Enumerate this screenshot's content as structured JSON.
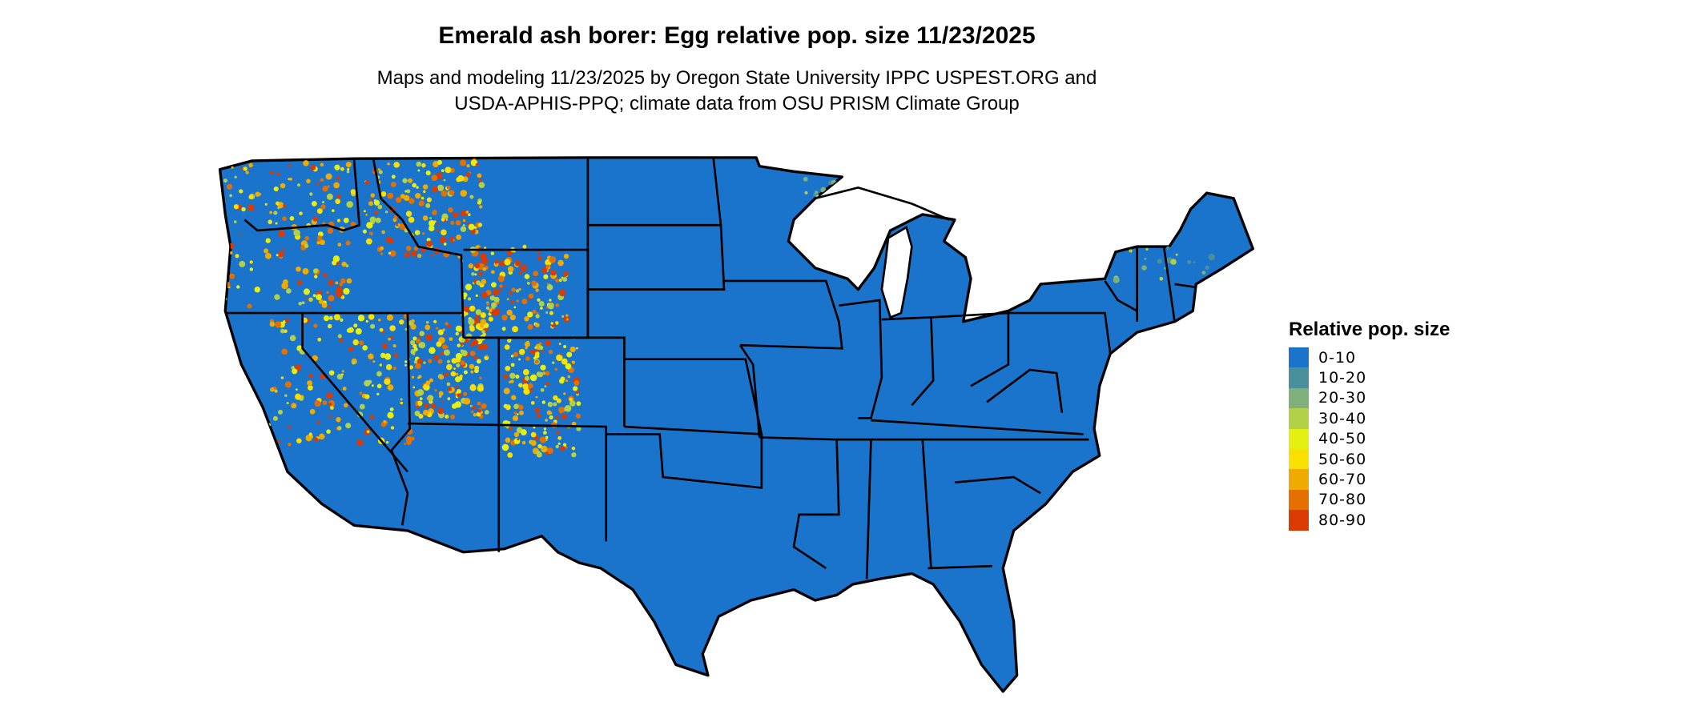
{
  "title": "Emerald ash borer: Egg relative pop. size 11/23/2025",
  "subtitle_line1": "Maps and modeling 11/23/2025 by Oregon State University IPPC USPEST.ORG and",
  "subtitle_line2": "USDA-APHIS-PPQ; climate data from OSU PRISM Climate Group",
  "legend": {
    "title": "Relative pop. size",
    "items": [
      {
        "label": "0-10",
        "color": "#1b74cc"
      },
      {
        "label": "10-20",
        "color": "#4a8f9c"
      },
      {
        "label": "20-30",
        "color": "#7db07a"
      },
      {
        "label": "30-40",
        "color": "#b3d146"
      },
      {
        "label": "40-50",
        "color": "#e5f012"
      },
      {
        "label": "50-60",
        "color": "#f9e000"
      },
      {
        "label": "60-70",
        "color": "#f0aa00"
      },
      {
        "label": "70-80",
        "color": "#e57000"
      },
      {
        "label": "80-90",
        "color": "#db3a00"
      }
    ]
  },
  "map": {
    "region": "Contiguous United States",
    "dominant_class": "0-10",
    "border_color": "#000000"
  }
}
